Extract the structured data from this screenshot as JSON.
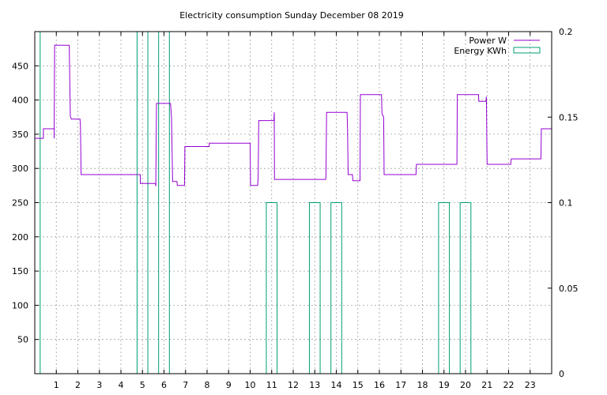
{
  "chart_data": {
    "type": "line",
    "title": "Electricity consumption Sunday December 08 2019",
    "x_range": [
      0,
      24
    ],
    "x_ticks": [
      1,
      2,
      3,
      4,
      5,
      6,
      7,
      8,
      9,
      10,
      11,
      12,
      13,
      14,
      15,
      16,
      17,
      18,
      19,
      20,
      21,
      22,
      23
    ],
    "y_left_range": [
      0,
      500
    ],
    "y_left_ticks": [
      50,
      100,
      150,
      200,
      250,
      300,
      350,
      400,
      450
    ],
    "y_right_range": [
      0,
      0.2
    ],
    "y_right_ticks": [
      "0",
      "0.05",
      "0.1",
      "0.15",
      "0.2"
    ],
    "grid": true,
    "legend_position": "top-right",
    "colors": {
      "power": "#9400d3",
      "energy": "#009e73"
    },
    "series": [
      {
        "name": "Power W",
        "axis": "left",
        "style": "steps",
        "points": [
          [
            0,
            344
          ],
          [
            0.4,
            344
          ],
          [
            0.4,
            358
          ],
          [
            0.9,
            358
          ],
          [
            0.9,
            344
          ],
          [
            0.92,
            480
          ],
          [
            1.6,
            480
          ],
          [
            1.65,
            376
          ],
          [
            1.7,
            372
          ],
          [
            2.1,
            372
          ],
          [
            2.12,
            362
          ],
          [
            2.15,
            291
          ],
          [
            4.9,
            291
          ],
          [
            4.9,
            278
          ],
          [
            5.6,
            278
          ],
          [
            5.62,
            274
          ],
          [
            5.65,
            395
          ],
          [
            6.3,
            395
          ],
          [
            6.35,
            375
          ],
          [
            6.4,
            281
          ],
          [
            6.6,
            281
          ],
          [
            6.62,
            275
          ],
          [
            6.95,
            275
          ],
          [
            6.97,
            332
          ],
          [
            8.1,
            332
          ],
          [
            8.1,
            337
          ],
          [
            10.0,
            337
          ],
          [
            10.02,
            275
          ],
          [
            10.35,
            275
          ],
          [
            10.37,
            286
          ],
          [
            10.4,
            370
          ],
          [
            11.1,
            370
          ],
          [
            11.12,
            382
          ],
          [
            11.13,
            284
          ],
          [
            13.5,
            284
          ],
          [
            13.52,
            287
          ],
          [
            13.55,
            382
          ],
          [
            14.5,
            382
          ],
          [
            14.52,
            360
          ],
          [
            14.55,
            291
          ],
          [
            14.75,
            291
          ],
          [
            14.77,
            282
          ],
          [
            15.1,
            282
          ],
          [
            15.12,
            408
          ],
          [
            16.1,
            408
          ],
          [
            16.12,
            380
          ],
          [
            16.2,
            375
          ],
          [
            16.22,
            291
          ],
          [
            17.7,
            291
          ],
          [
            17.72,
            306
          ],
          [
            19.6,
            306
          ],
          [
            19.62,
            408
          ],
          [
            20.6,
            408
          ],
          [
            20.62,
            398
          ],
          [
            20.95,
            398
          ],
          [
            20.97,
            405
          ],
          [
            21.0,
            306
          ],
          [
            22.1,
            306
          ],
          [
            22.12,
            314
          ],
          [
            23.5,
            314
          ],
          [
            23.52,
            358
          ],
          [
            24,
            358
          ]
        ]
      },
      {
        "name": "Energy KWh",
        "axis": "right",
        "style": "impulse-steps",
        "points": [
          [
            0,
            0.2
          ],
          [
            0.25,
            0.2
          ],
          [
            4.75,
            0.2
          ],
          [
            5.25,
            0.2
          ],
          [
            5.75,
            0.2
          ],
          [
            6.25,
            0.2
          ],
          [
            10.75,
            0.1
          ],
          [
            11.25,
            0.1
          ],
          [
            12.75,
            0.1
          ],
          [
            13.25,
            0.1
          ],
          [
            13.75,
            0.1
          ],
          [
            14.25,
            0.1
          ],
          [
            18.75,
            0.1
          ],
          [
            19.25,
            0.1
          ],
          [
            19.75,
            0.1
          ],
          [
            20.25,
            0.1
          ]
        ]
      }
    ]
  }
}
